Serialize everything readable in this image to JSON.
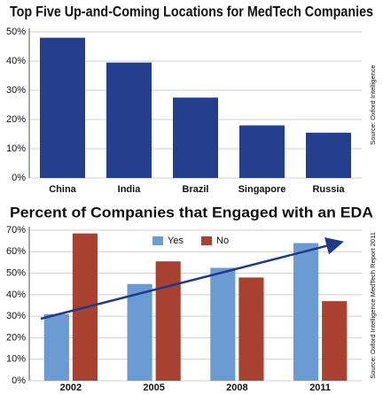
{
  "chart_data": [
    {
      "type": "bar",
      "title": "Top Five Up-and-Coming Locations for MedTech Companies",
      "source": "Source: Oxford Intelligence",
      "categories": [
        "China",
        "India",
        "Brazil",
        "Singapore",
        "Russia"
      ],
      "values": [
        48,
        39.5,
        27.5,
        18,
        15.5
      ],
      "color": "#233f8e",
      "ylim": [
        0,
        50
      ],
      "yticks": [
        {
          "value": 0,
          "label": "0%"
        },
        {
          "value": 10,
          "label": "10%"
        },
        {
          "value": 20,
          "label": "20%"
        },
        {
          "value": 30,
          "label": "30%"
        },
        {
          "value": 40,
          "label": "40%"
        },
        {
          "value": 50,
          "label": "50%"
        }
      ],
      "grid": true
    },
    {
      "type": "grouped-bar",
      "title": "Percent of Companies that Engaged with an EDA",
      "source": "Source: Oxford Intelligence MedTech Report 2011",
      "categories": [
        "2002",
        "2005",
        "2008",
        "2011"
      ],
      "series": [
        {
          "name": "Yes",
          "color": "#6b9bd3",
          "values": [
            31,
            45,
            52.5,
            64
          ]
        },
        {
          "name": "No",
          "color": "#a8412f",
          "values": [
            68.5,
            55.5,
            48,
            37
          ]
        }
      ],
      "ylim": [
        0,
        70
      ],
      "yticks": [
        {
          "value": 0,
          "label": "0%"
        },
        {
          "value": 10,
          "label": "10%"
        },
        {
          "value": 20,
          "label": "20%"
        },
        {
          "value": 30,
          "label": "30%"
        },
        {
          "value": 40,
          "label": "40%"
        },
        {
          "value": 50,
          "label": "50%"
        },
        {
          "value": 60,
          "label": "60%"
        },
        {
          "value": 70,
          "label": "70%"
        }
      ],
      "grid": true,
      "legend": "top"
    }
  ]
}
